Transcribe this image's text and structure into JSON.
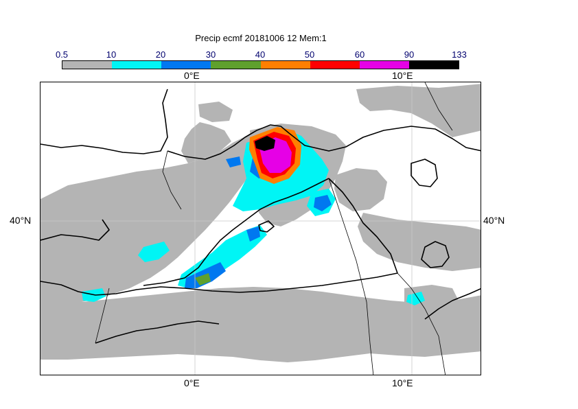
{
  "title": "Precip ecmf 20181006 12 Mem:1",
  "legend": {
    "ticks": [
      "0.5",
      "10",
      "20",
      "30",
      "40",
      "50",
      "60",
      "90",
      "133"
    ],
    "colors": [
      "#b4b4b4",
      "#00f5f5",
      "#0078f0",
      "#5fa02d",
      "#ff7f00",
      "#ff0000",
      "#e600e6",
      "#000000"
    ]
  },
  "axes": {
    "lon_top": [
      "0°E",
      "10°E"
    ],
    "lon_bottom": [
      "0°E",
      "10°E"
    ],
    "lat_left": "40°N",
    "lat_right": "40°N"
  }
}
